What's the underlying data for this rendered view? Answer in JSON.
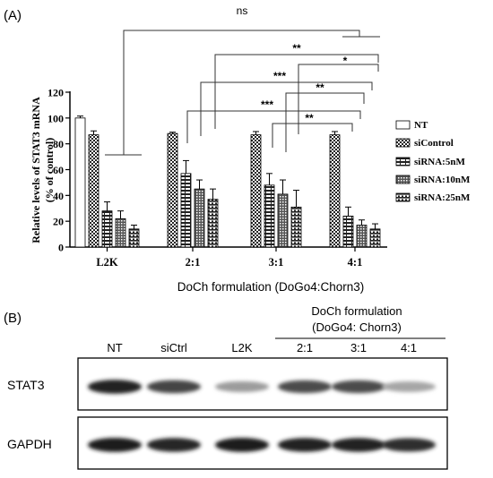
{
  "panel_a": {
    "label": "(A)",
    "ylabel_line1": "Relative levels of STAT3 mRNA",
    "ylabel_line2": "(% of control)",
    "xlabel": "DoCh formulation (DoGo4:Chorn3)",
    "ns_label": "ns"
  },
  "chart_data": {
    "type": "bar",
    "categories": [
      "L2K",
      "2:1",
      "3:1",
      "4:1"
    ],
    "series": [
      {
        "name": "NT",
        "values": [
          100,
          null,
          null,
          null
        ],
        "errors": [
          1.5,
          null,
          null,
          null
        ]
      },
      {
        "name": "siControl",
        "values": [
          87,
          88,
          87,
          87
        ],
        "errors": [
          3,
          1,
          2.5,
          2.5
        ]
      },
      {
        "name": "siRNA:5nM",
        "values": [
          28,
          57,
          48,
          24
        ],
        "errors": [
          7,
          10,
          9,
          7
        ]
      },
      {
        "name": "siRNA:10nM",
        "values": [
          22,
          45,
          41,
          17
        ],
        "errors": [
          6,
          7,
          11,
          4
        ]
      },
      {
        "name": "siRNA:25nM",
        "values": [
          14,
          37,
          31,
          14
        ],
        "errors": [
          3,
          8,
          13,
          4
        ]
      }
    ],
    "ylim": [
      0,
      120
    ],
    "yticks": [
      0,
      20,
      40,
      60,
      80,
      100,
      120
    ],
    "legend": "right",
    "annotations": [
      "ns",
      "**",
      "*",
      "***",
      "**",
      "***",
      "**"
    ]
  },
  "panel_b": {
    "label": "(B)",
    "header_line1": "DoCh formulation",
    "header_line2": "(DoGo4: Chorn3)",
    "lanes": [
      "NT",
      "siCtrl",
      "L2K",
      "2:1",
      "3:1",
      "4:1"
    ],
    "rows": [
      {
        "name": "STAT3",
        "intensities": [
          0.92,
          0.75,
          0.35,
          0.72,
          0.72,
          0.3
        ]
      },
      {
        "name": "GAPDH",
        "intensities": [
          0.95,
          0.9,
          0.95,
          0.92,
          0.92,
          0.85
        ]
      }
    ]
  }
}
